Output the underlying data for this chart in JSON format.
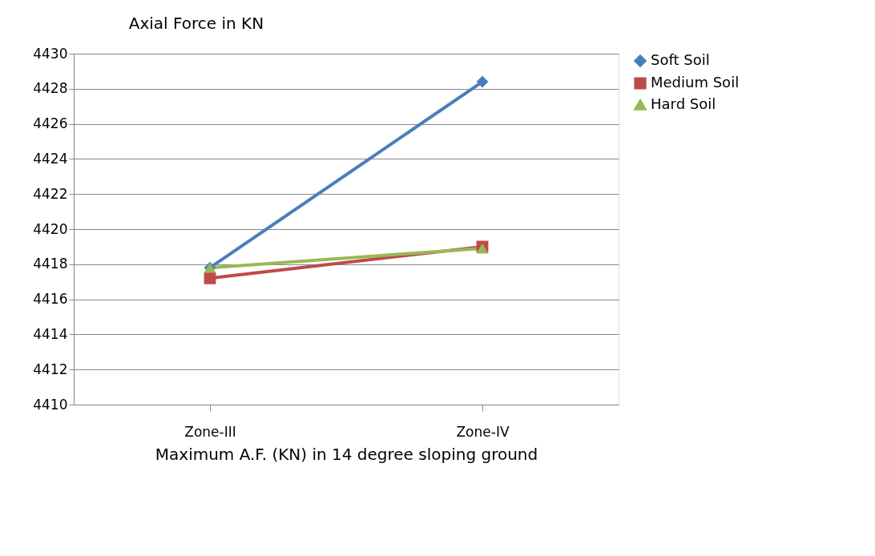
{
  "chart_data": {
    "type": "line",
    "title": "Axial Force in KN",
    "xlabel": "Maximum A.F. (KN) in 14 degree sloping ground",
    "categories": [
      "Zone-III",
      "Zone-IV"
    ],
    "series": [
      {
        "name": "Soft Soil",
        "color": "#4a7ebb",
        "marker": "diamond",
        "values": [
          4417.8,
          4428.4
        ]
      },
      {
        "name": "Medium Soil",
        "color": "#be4b48",
        "marker": "square",
        "values": [
          4417.2,
          4419.0
        ]
      },
      {
        "name": "Hard Soil",
        "color": "#98b954",
        "marker": "triangle",
        "values": [
          4417.8,
          4418.9
        ]
      }
    ],
    "ylim": [
      4410,
      4430
    ],
    "yticks": [
      4410,
      4412,
      4414,
      4416,
      4418,
      4420,
      4422,
      4424,
      4426,
      4428,
      4430
    ],
    "grid": "y",
    "legend": "right",
    "line_style": "solid"
  }
}
